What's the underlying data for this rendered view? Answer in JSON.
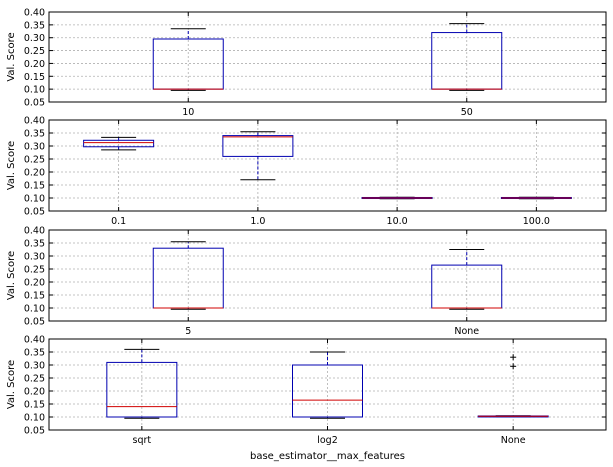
{
  "chart_data": [
    {
      "type": "box",
      "ylabel": "Val. Score",
      "xlabel": "",
      "ylim": [
        0.05,
        0.4
      ],
      "yticks": [
        "0.05",
        "0.10",
        "0.15",
        "0.20",
        "0.25",
        "0.30",
        "0.35",
        "0.40"
      ],
      "grid": true,
      "categories": [
        "10",
        "50"
      ],
      "boxes": [
        {
          "q1": 0.1,
          "median": 0.1,
          "q3": 0.295,
          "whislo": 0.095,
          "whishi": 0.335,
          "fliers": []
        },
        {
          "q1": 0.1,
          "median": 0.1,
          "q3": 0.32,
          "whislo": 0.095,
          "whishi": 0.355,
          "fliers": []
        }
      ]
    },
    {
      "type": "box",
      "ylabel": "Val. Score",
      "xlabel": "",
      "ylim": [
        0.05,
        0.4
      ],
      "yticks": [
        "0.05",
        "0.10",
        "0.15",
        "0.20",
        "0.25",
        "0.30",
        "0.35",
        "0.40"
      ],
      "grid": true,
      "categories": [
        "0.1",
        "1.0",
        "10.0",
        "100.0"
      ],
      "boxes": [
        {
          "q1": 0.297,
          "median": 0.313,
          "q3": 0.322,
          "whislo": 0.285,
          "whishi": 0.333,
          "fliers": []
        },
        {
          "q1": 0.26,
          "median": 0.335,
          "q3": 0.34,
          "whislo": 0.17,
          "whishi": 0.355,
          "fliers": []
        },
        {
          "q1": 0.098,
          "median": 0.1,
          "q3": 0.102,
          "whislo": 0.097,
          "whishi": 0.103,
          "fliers": []
        },
        {
          "q1": 0.098,
          "median": 0.1,
          "q3": 0.102,
          "whislo": 0.097,
          "whishi": 0.103,
          "fliers": []
        }
      ]
    },
    {
      "type": "box",
      "ylabel": "Val. Score",
      "xlabel": "",
      "ylim": [
        0.05,
        0.4
      ],
      "yticks": [
        "0.05",
        "0.10",
        "0.15",
        "0.20",
        "0.25",
        "0.30",
        "0.35",
        "0.40"
      ],
      "grid": true,
      "categories": [
        "5",
        "None"
      ],
      "boxes": [
        {
          "q1": 0.1,
          "median": 0.1,
          "q3": 0.33,
          "whislo": 0.095,
          "whishi": 0.355,
          "fliers": []
        },
        {
          "q1": 0.1,
          "median": 0.1,
          "q3": 0.265,
          "whislo": 0.095,
          "whishi": 0.325,
          "fliers": []
        }
      ]
    },
    {
      "type": "box",
      "ylabel": "Val. Score",
      "xlabel": "base_estimator__max_features",
      "ylim": [
        0.05,
        0.4
      ],
      "yticks": [
        "0.05",
        "0.10",
        "0.15",
        "0.20",
        "0.25",
        "0.30",
        "0.35",
        "0.40"
      ],
      "grid": true,
      "categories": [
        "sqrt",
        "log2",
        "None"
      ],
      "boxes": [
        {
          "q1": 0.1,
          "median": 0.14,
          "q3": 0.31,
          "whislo": 0.095,
          "whishi": 0.36,
          "fliers": []
        },
        {
          "q1": 0.1,
          "median": 0.165,
          "q3": 0.3,
          "whislo": 0.095,
          "whishi": 0.35,
          "fliers": []
        },
        {
          "q1": 0.102,
          "median": 0.103,
          "q3": 0.104,
          "whislo": 0.101,
          "whishi": 0.105,
          "fliers": [
            0.295,
            0.33
          ]
        }
      ]
    }
  ]
}
